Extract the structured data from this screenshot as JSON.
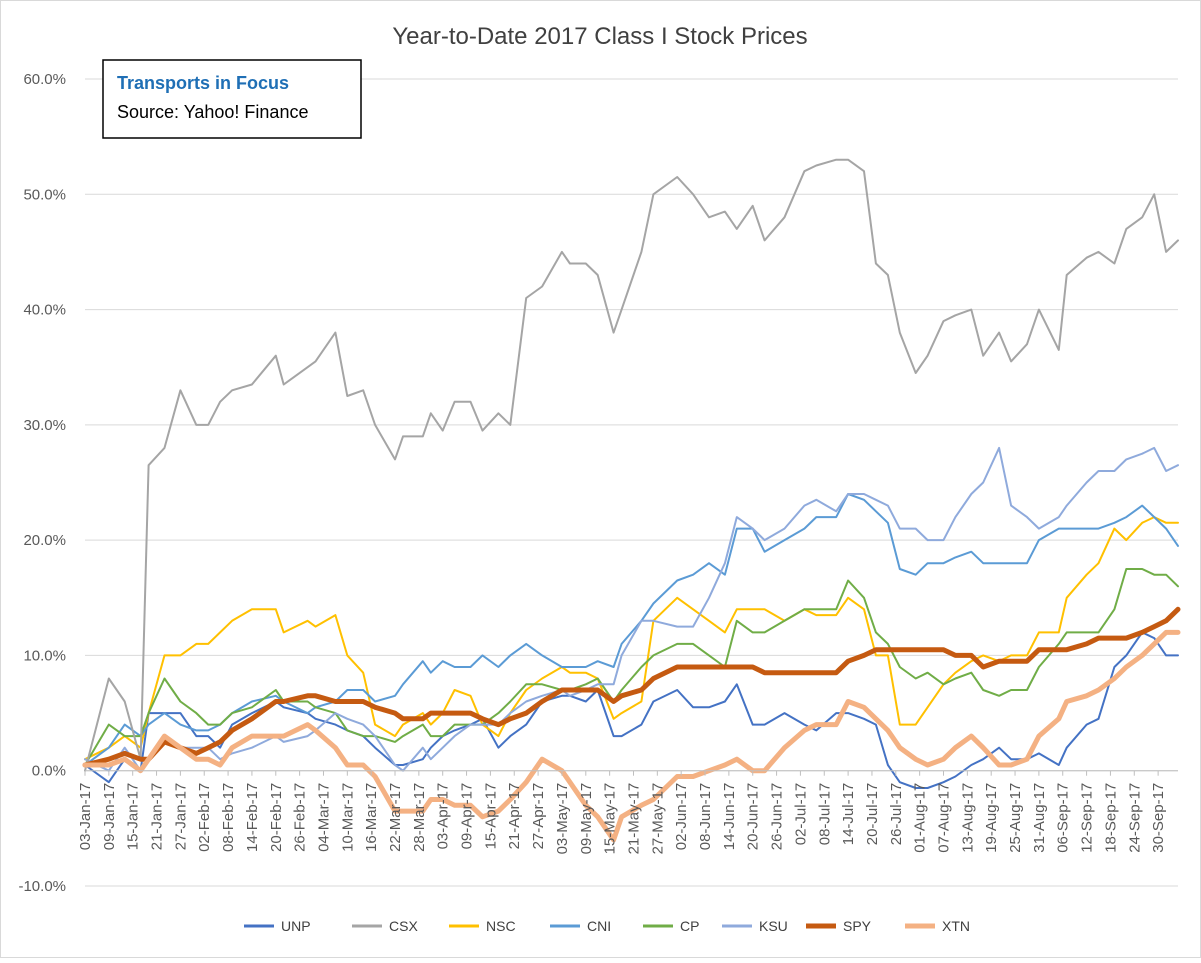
{
  "chart_data": {
    "type": "line",
    "title": "Year-to-Date 2017 Class I Stock Prices",
    "annotation": {
      "title": "Transports in Focus",
      "source": "Source: Yahoo! Finance"
    },
    "ylim": [
      -0.1,
      0.6
    ],
    "yticks": [
      -0.1,
      0.0,
      0.1,
      0.2,
      0.3,
      0.4,
      0.5,
      0.6
    ],
    "ytick_labels": [
      "-10.0%",
      "0.0%",
      "10.0%",
      "20.0%",
      "30.0%",
      "40.0%",
      "50.0%",
      "60.0%"
    ],
    "xlim": [
      "2017-01-03",
      "2017-10-05"
    ],
    "x_tick_labels": [
      "03-Jan-17",
      "09-Jan-17",
      "15-Jan-17",
      "21-Jan-17",
      "27-Jan-17",
      "02-Feb-17",
      "08-Feb-17",
      "14-Feb-17",
      "20-Feb-17",
      "26-Feb-17",
      "04-Mar-17",
      "10-Mar-17",
      "16-Mar-17",
      "22-Mar-17",
      "28-Mar-17",
      "03-Apr-17",
      "09-Apr-17",
      "15-Apr-17",
      "21-Apr-17",
      "27-Apr-17",
      "03-May-17",
      "09-May-17",
      "15-May-17",
      "21-May-17",
      "27-May-17",
      "02-Jun-17",
      "08-Jun-17",
      "14-Jun-17",
      "20-Jun-17",
      "26-Jun-17",
      "02-Jul-17",
      "08-Jul-17",
      "14-Jul-17",
      "20-Jul-17",
      "26-Jul-17",
      "01-Aug-17",
      "07-Aug-17",
      "13-Aug-17",
      "19-Aug-17",
      "25-Aug-17",
      "31-Aug-17",
      "06-Sep-17",
      "12-Sep-17",
      "18-Sep-17",
      "24-Sep-17",
      "30-Sep-17"
    ],
    "x": [
      "2017-01-03",
      "2017-01-09",
      "2017-01-13",
      "2017-01-17",
      "2017-01-19",
      "2017-01-23",
      "2017-01-27",
      "2017-01-31",
      "2017-02-03",
      "2017-02-06",
      "2017-02-09",
      "2017-02-14",
      "2017-02-20",
      "2017-02-22",
      "2017-02-28",
      "2017-03-02",
      "2017-03-07",
      "2017-03-10",
      "2017-03-14",
      "2017-03-17",
      "2017-03-22",
      "2017-03-24",
      "2017-03-29",
      "2017-03-31",
      "2017-04-03",
      "2017-04-06",
      "2017-04-10",
      "2017-04-13",
      "2017-04-17",
      "2017-04-20",
      "2017-04-24",
      "2017-04-28",
      "2017-05-03",
      "2017-05-05",
      "2017-05-09",
      "2017-05-12",
      "2017-05-16",
      "2017-05-18",
      "2017-05-23",
      "2017-05-26",
      "2017-06-01",
      "2017-06-05",
      "2017-06-09",
      "2017-06-13",
      "2017-06-16",
      "2017-06-20",
      "2017-06-23",
      "2017-06-28",
      "2017-07-03",
      "2017-07-06",
      "2017-07-11",
      "2017-07-14",
      "2017-07-18",
      "2017-07-21",
      "2017-07-24",
      "2017-07-27",
      "2017-07-31",
      "2017-08-03",
      "2017-08-07",
      "2017-08-10",
      "2017-08-14",
      "2017-08-17",
      "2017-08-21",
      "2017-08-24",
      "2017-08-28",
      "2017-08-31",
      "2017-09-05",
      "2017-09-07",
      "2017-09-12",
      "2017-09-15",
      "2017-09-19",
      "2017-09-22",
      "2017-09-26",
      "2017-09-29",
      "2017-10-02",
      "2017-10-05"
    ],
    "series": [
      {
        "name": "UNP",
        "color": "#4472C4",
        "width": 2,
        "values": [
          0.005,
          -0.01,
          0.01,
          0.0,
          0.05,
          0.05,
          0.05,
          0.03,
          0.03,
          0.02,
          0.04,
          0.05,
          0.06,
          0.055,
          0.05,
          0.045,
          0.04,
          0.035,
          0.03,
          0.02,
          0.005,
          0.005,
          0.01,
          0.02,
          0.03,
          0.035,
          0.04,
          0.045,
          0.02,
          0.03,
          0.04,
          0.06,
          0.065,
          0.065,
          0.06,
          0.07,
          0.03,
          0.03,
          0.04,
          0.06,
          0.07,
          0.055,
          0.055,
          0.06,
          0.075,
          0.04,
          0.04,
          0.05,
          0.04,
          0.035,
          0.05,
          0.05,
          0.045,
          0.04,
          0.005,
          -0.01,
          -0.015,
          -0.015,
          -0.01,
          -0.005,
          0.005,
          0.01,
          0.02,
          0.01,
          0.01,
          0.015,
          0.005,
          0.02,
          0.04,
          0.045,
          0.09,
          0.1,
          0.12,
          0.115,
          0.1,
          0.1
        ]
      },
      {
        "name": "CSX",
        "color": "#A5A5A5",
        "width": 2,
        "values": [
          0.0,
          0.08,
          0.06,
          0.01,
          0.265,
          0.28,
          0.33,
          0.3,
          0.3,
          0.32,
          0.33,
          0.335,
          0.36,
          0.335,
          0.35,
          0.355,
          0.38,
          0.325,
          0.33,
          0.3,
          0.27,
          0.29,
          0.29,
          0.31,
          0.295,
          0.32,
          0.32,
          0.295,
          0.31,
          0.3,
          0.41,
          0.42,
          0.45,
          0.44,
          0.44,
          0.43,
          0.38,
          0.4,
          0.45,
          0.5,
          0.515,
          0.5,
          0.48,
          0.485,
          0.47,
          0.49,
          0.46,
          0.48,
          0.52,
          0.525,
          0.53,
          0.53,
          0.52,
          0.44,
          0.43,
          0.38,
          0.345,
          0.36,
          0.39,
          0.395,
          0.4,
          0.36,
          0.38,
          0.355,
          0.37,
          0.4,
          0.365,
          0.43,
          0.445,
          0.45,
          0.44,
          0.47,
          0.48,
          0.5,
          0.45,
          0.46
        ]
      },
      {
        "name": "NSC",
        "color": "#FFC000",
        "width": 2,
        "values": [
          0.01,
          0.02,
          0.03,
          0.02,
          0.05,
          0.1,
          0.1,
          0.11,
          0.11,
          0.12,
          0.13,
          0.14,
          0.14,
          0.12,
          0.13,
          0.125,
          0.135,
          0.1,
          0.085,
          0.04,
          0.03,
          0.04,
          0.05,
          0.04,
          0.05,
          0.07,
          0.065,
          0.04,
          0.03,
          0.05,
          0.07,
          0.08,
          0.09,
          0.085,
          0.085,
          0.08,
          0.045,
          0.05,
          0.06,
          0.13,
          0.15,
          0.14,
          0.13,
          0.12,
          0.14,
          0.14,
          0.14,
          0.13,
          0.14,
          0.135,
          0.135,
          0.15,
          0.14,
          0.1,
          0.1,
          0.04,
          0.04,
          0.055,
          0.075,
          0.085,
          0.095,
          0.1,
          0.095,
          0.1,
          0.1,
          0.12,
          0.12,
          0.15,
          0.17,
          0.18,
          0.21,
          0.2,
          0.215,
          0.22,
          0.215,
          0.215
        ]
      },
      {
        "name": "CNI",
        "color": "#5B9BD5",
        "width": 2,
        "values": [
          0.005,
          0.02,
          0.04,
          0.03,
          0.04,
          0.05,
          0.04,
          0.035,
          0.035,
          0.04,
          0.05,
          0.06,
          0.065,
          0.06,
          0.05,
          0.055,
          0.06,
          0.07,
          0.07,
          0.06,
          0.065,
          0.075,
          0.095,
          0.085,
          0.095,
          0.09,
          0.09,
          0.1,
          0.09,
          0.1,
          0.11,
          0.1,
          0.09,
          0.09,
          0.09,
          0.095,
          0.09,
          0.11,
          0.13,
          0.145,
          0.165,
          0.17,
          0.18,
          0.17,
          0.21,
          0.21,
          0.19,
          0.2,
          0.21,
          0.22,
          0.22,
          0.24,
          0.235,
          0.225,
          0.215,
          0.175,
          0.17,
          0.18,
          0.18,
          0.185,
          0.19,
          0.18,
          0.18,
          0.18,
          0.18,
          0.2,
          0.21,
          0.21,
          0.21,
          0.21,
          0.215,
          0.22,
          0.23,
          0.22,
          0.21,
          0.195
        ]
      },
      {
        "name": "CP",
        "color": "#70AD47",
        "width": 2,
        "values": [
          0.005,
          0.04,
          0.03,
          0.03,
          0.05,
          0.08,
          0.06,
          0.05,
          0.04,
          0.04,
          0.05,
          0.055,
          0.07,
          0.06,
          0.06,
          0.055,
          0.05,
          0.035,
          0.03,
          0.03,
          0.025,
          0.03,
          0.04,
          0.03,
          0.03,
          0.04,
          0.04,
          0.04,
          0.05,
          0.06,
          0.075,
          0.075,
          0.07,
          0.07,
          0.075,
          0.08,
          0.06,
          0.07,
          0.09,
          0.1,
          0.11,
          0.11,
          0.1,
          0.09,
          0.13,
          0.12,
          0.12,
          0.13,
          0.14,
          0.14,
          0.14,
          0.165,
          0.15,
          0.12,
          0.11,
          0.09,
          0.08,
          0.085,
          0.075,
          0.08,
          0.085,
          0.07,
          0.065,
          0.07,
          0.07,
          0.09,
          0.11,
          0.12,
          0.12,
          0.12,
          0.14,
          0.175,
          0.175,
          0.17,
          0.17,
          0.16
        ]
      },
      {
        "name": "KSU",
        "color": "#8FAADC",
        "width": 2,
        "values": [
          0.01,
          0.0,
          0.02,
          0.0,
          0.01,
          0.03,
          0.02,
          0.02,
          0.02,
          0.01,
          0.015,
          0.02,
          0.03,
          0.025,
          0.03,
          0.035,
          0.05,
          0.045,
          0.04,
          0.03,
          0.005,
          0.0,
          0.02,
          0.01,
          0.02,
          0.03,
          0.04,
          0.04,
          0.04,
          0.05,
          0.06,
          0.065,
          0.07,
          0.065,
          0.07,
          0.075,
          0.075,
          0.1,
          0.13,
          0.13,
          0.125,
          0.125,
          0.15,
          0.18,
          0.22,
          0.21,
          0.2,
          0.21,
          0.23,
          0.235,
          0.225,
          0.24,
          0.24,
          0.235,
          0.23,
          0.21,
          0.21,
          0.2,
          0.2,
          0.22,
          0.24,
          0.25,
          0.28,
          0.23,
          0.22,
          0.21,
          0.22,
          0.23,
          0.25,
          0.26,
          0.26,
          0.27,
          0.275,
          0.28,
          0.26,
          0.265
        ]
      },
      {
        "name": "SPY",
        "color": "#C55A11",
        "width": 5,
        "values": [
          0.005,
          0.01,
          0.015,
          0.01,
          0.01,
          0.025,
          0.02,
          0.015,
          0.02,
          0.025,
          0.035,
          0.045,
          0.06,
          0.06,
          0.065,
          0.065,
          0.06,
          0.06,
          0.06,
          0.055,
          0.05,
          0.045,
          0.045,
          0.05,
          0.05,
          0.05,
          0.05,
          0.045,
          0.04,
          0.045,
          0.05,
          0.06,
          0.07,
          0.07,
          0.07,
          0.07,
          0.06,
          0.065,
          0.07,
          0.08,
          0.09,
          0.09,
          0.09,
          0.09,
          0.09,
          0.09,
          0.085,
          0.085,
          0.085,
          0.085,
          0.085,
          0.095,
          0.1,
          0.105,
          0.105,
          0.105,
          0.105,
          0.105,
          0.105,
          0.1,
          0.1,
          0.09,
          0.095,
          0.095,
          0.095,
          0.105,
          0.105,
          0.105,
          0.11,
          0.115,
          0.115,
          0.115,
          0.12,
          0.125,
          0.13,
          0.14
        ]
      },
      {
        "name": "XTN",
        "color": "#F4B183",
        "width": 5,
        "values": [
          0.005,
          0.005,
          0.01,
          0.0,
          0.01,
          0.03,
          0.02,
          0.01,
          0.01,
          0.005,
          0.02,
          0.03,
          0.03,
          0.03,
          0.04,
          0.035,
          0.02,
          0.005,
          0.005,
          -0.005,
          -0.035,
          -0.035,
          -0.035,
          -0.025,
          -0.025,
          -0.03,
          -0.03,
          -0.04,
          -0.035,
          -0.025,
          -0.01,
          0.01,
          0.0,
          -0.01,
          -0.03,
          -0.04,
          -0.06,
          -0.04,
          -0.03,
          -0.025,
          -0.005,
          -0.005,
          0.0,
          0.005,
          0.01,
          0.0,
          0.0,
          0.02,
          0.035,
          0.04,
          0.04,
          0.06,
          0.055,
          0.045,
          0.035,
          0.02,
          0.01,
          0.005,
          0.01,
          0.02,
          0.03,
          0.02,
          0.005,
          0.005,
          0.01,
          0.03,
          0.045,
          0.06,
          0.065,
          0.07,
          0.08,
          0.09,
          0.1,
          0.11,
          0.12,
          0.12
        ]
      }
    ],
    "legend": "bottom"
  }
}
